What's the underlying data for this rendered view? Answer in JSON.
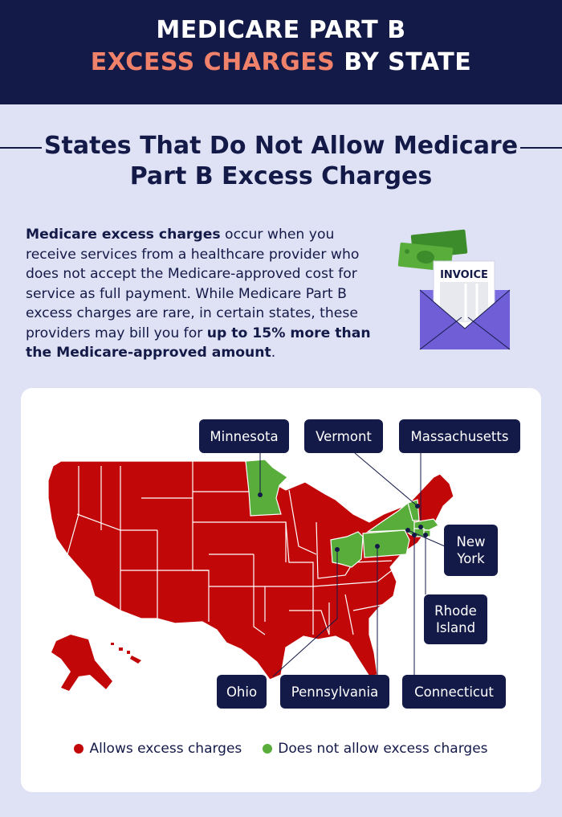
{
  "header": {
    "line1": "MEDICARE PART B",
    "line2_accent": "EXCESS CHARGES",
    "line2_rest": " BY STATE"
  },
  "subtitle": {
    "line1": "States That Do Not Allow Medicare",
    "line2": "Part B Excess Charges"
  },
  "intro": {
    "bold1": "Medicare excess charges",
    "text1": " occur when you receive services from a healthcare provider who does not accept the Medicare-approved cost for service as full payment. While Medicare Part B excess charges are rare, in certain states, these providers may bill you for ",
    "bold2": "up to 15% more than the Medicare-approved amount",
    "text2": "."
  },
  "invoice_label": "INVOICE",
  "state_labels": {
    "minnesota": "Minnesota",
    "vermont": "Vermont",
    "massachusetts": "Massachusetts",
    "new_york": "New York",
    "rhode_island": "Rhode Island",
    "ohio": "Ohio",
    "pennsylvania": "Pennsylvania",
    "connecticut": "Connecticut"
  },
  "legend": {
    "allows": "Allows excess charges",
    "not_allow": "Does not allow excess charges"
  },
  "colors": {
    "navy": "#141a48",
    "accent": "#f0826b",
    "allows_red": "#c10707",
    "not_allow_green": "#58ad3b",
    "background": "#dfe1f4"
  },
  "icons": [
    "money-icon",
    "envelope-icon",
    "invoice-paper-icon"
  ]
}
